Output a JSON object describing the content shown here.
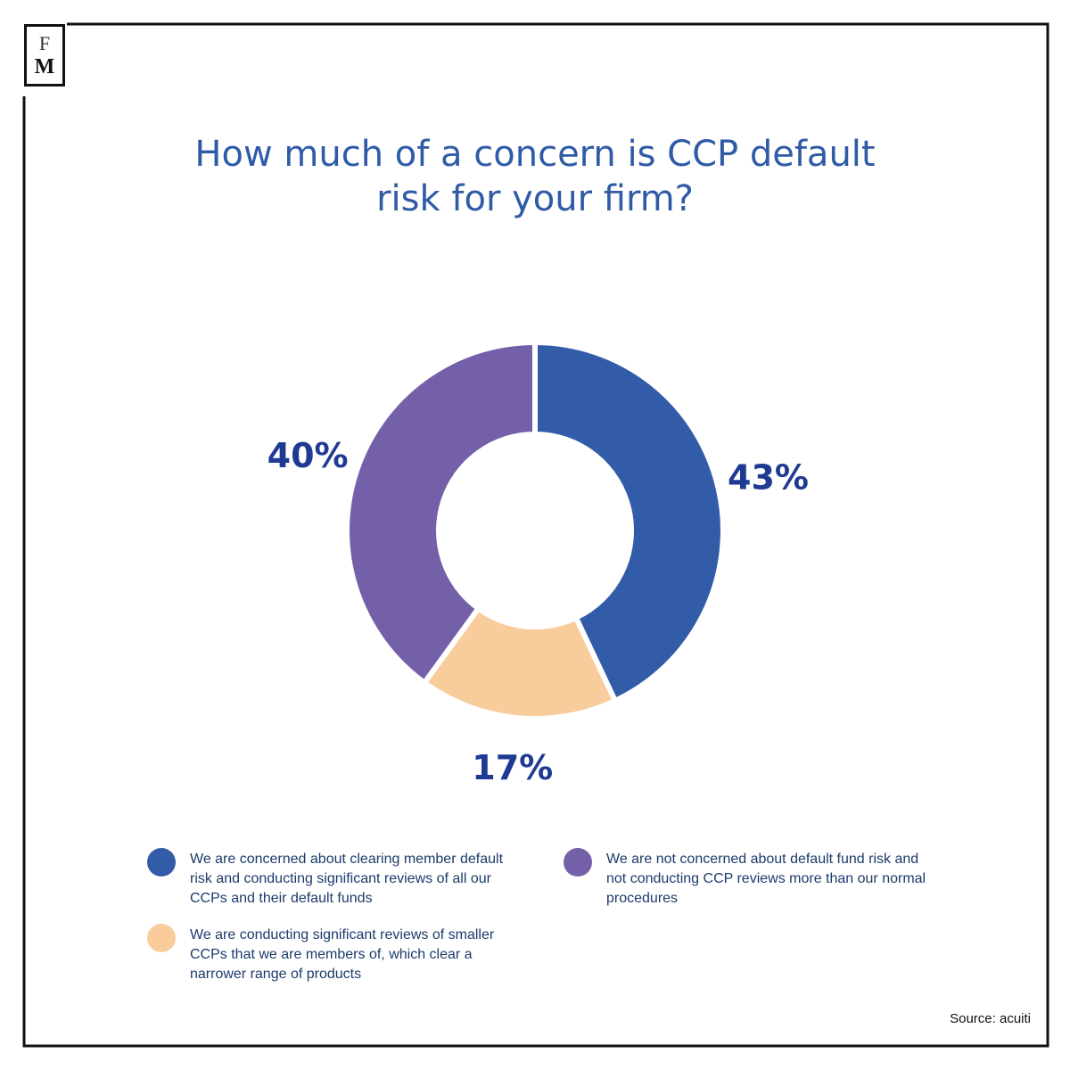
{
  "logo": {
    "top": "F",
    "bottom": "M"
  },
  "chart_data": {
    "type": "pie",
    "donut": true,
    "title": "How much of a concern is CCP default risk for your firm?",
    "categories": [
      "We are concerned about clearing member default risk and conducting significant reviews of all our CCPs and their default funds",
      "We are conducting significant reviews of smaller CCPs that we are members of, which clear a narrower range of products",
      "We are not concerned about default fund risk and not conducting CCP reviews more than our normal procedures"
    ],
    "values": [
      43,
      17,
      40
    ],
    "value_labels": [
      "43%",
      "17%",
      "40%"
    ],
    "colors": [
      "#335ca8",
      "#f9cc9c",
      "#7460a8"
    ],
    "source": "Source: acuiti"
  }
}
